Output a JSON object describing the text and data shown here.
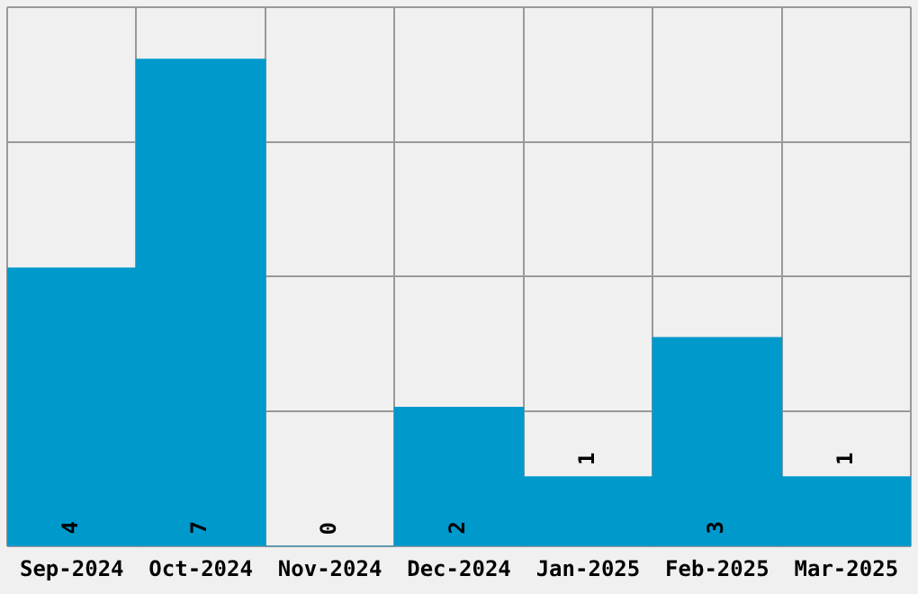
{
  "chart_data": {
    "type": "bar",
    "categories": [
      "Sep-2024",
      "Oct-2024",
      "Nov-2024",
      "Dec-2024",
      "Jan-2025",
      "Feb-2025",
      "Mar-2025"
    ],
    "values": [
      4,
      7,
      0,
      2,
      1,
      3,
      1
    ],
    "color": "#0099cc",
    "ylim": [
      0,
      7.75
    ],
    "yticks": [
      {
        "value": 0,
        "label": null
      },
      {
        "value": 1.94,
        "label": null
      },
      {
        "value": 3.88,
        "label": null
      },
      {
        "value": 5.81,
        "label": null
      },
      {
        "value": 7.75,
        "label": null
      }
    ],
    "grid": true,
    "data_labels": true,
    "tick_labels": "x"
  }
}
